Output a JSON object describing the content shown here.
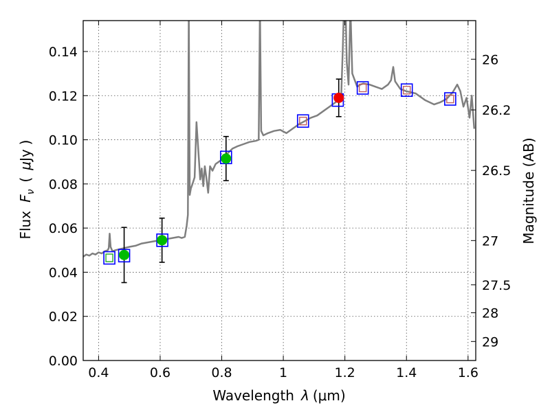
{
  "chart_data": {
    "type": "scatter",
    "xlabel_text": "Wavelength",
    "xlabel_symbol": "λ",
    "xlabel_unit": "(μm)",
    "ylabel_text": "Flux",
    "ylabel_symbol": "F",
    "ylabel_sub": "ν",
    "ylabel_paren_open": "(",
    "ylabel_unit_mu": "μ",
    "ylabel_unit_rest": "Jy",
    "ylabel_paren_close": ")",
    "y2label": "Magnitude (AB)",
    "xlim": [
      0.35,
      1.625
    ],
    "ylim": [
      0.0,
      0.154
    ],
    "grid": true,
    "x_ticks": [
      {
        "value": 0.4,
        "label": "0.4"
      },
      {
        "value": 0.6,
        "label": "0.6"
      },
      {
        "value": 0.8,
        "label": "0.8"
      },
      {
        "value": 1.0,
        "label": "1"
      },
      {
        "value": 1.2,
        "label": "1.2"
      },
      {
        "value": 1.4,
        "label": "1.4"
      },
      {
        "value": 1.6,
        "label": "1.6"
      }
    ],
    "y_ticks": [
      {
        "value": 0.0,
        "label": "0.00"
      },
      {
        "value": 0.02,
        "label": "0.02"
      },
      {
        "value": 0.04,
        "label": "0.04"
      },
      {
        "value": 0.06,
        "label": "0.06"
      },
      {
        "value": 0.08,
        "label": "0.08"
      },
      {
        "value": 0.1,
        "label": "0.10"
      },
      {
        "value": 0.12,
        "label": "0.12"
      },
      {
        "value": 0.14,
        "label": "0.14"
      }
    ],
    "mag_ticks": [
      {
        "mag": 26.0,
        "label": "26"
      },
      {
        "mag": 26.2,
        "label": "26.2"
      },
      {
        "mag": 26.5,
        "label": "26.5"
      },
      {
        "mag": 27.0,
        "label": "27"
      },
      {
        "mag": 27.5,
        "label": "27.5"
      },
      {
        "mag": 28.0,
        "label": "28"
      },
      {
        "mag": 29.0,
        "label": "29"
      }
    ],
    "colors": {
      "spectrum": "#7f7f7f",
      "model_box": "#0000ff",
      "green_obs": "#00bb00",
      "red_obs": "#ee0000",
      "inner_box_red": "#c06060",
      "inner_box_green": "#22aa22",
      "errorbar": "#000000"
    },
    "spectrum": [
      [
        0.35,
        0.047
      ],
      [
        0.36,
        0.048
      ],
      [
        0.37,
        0.0475
      ],
      [
        0.38,
        0.0485
      ],
      [
        0.39,
        0.048
      ],
      [
        0.4,
        0.049
      ],
      [
        0.41,
        0.0485
      ],
      [
        0.42,
        0.0495
      ],
      [
        0.43,
        0.05
      ],
      [
        0.433,
        0.051
      ],
      [
        0.436,
        0.0575
      ],
      [
        0.439,
        0.0515
      ],
      [
        0.445,
        0.0495
      ],
      [
        0.455,
        0.05
      ],
      [
        0.47,
        0.0505
      ],
      [
        0.485,
        0.051
      ],
      [
        0.5,
        0.0515
      ],
      [
        0.52,
        0.052
      ],
      [
        0.54,
        0.053
      ],
      [
        0.56,
        0.0535
      ],
      [
        0.58,
        0.054
      ],
      [
        0.6,
        0.0545
      ],
      [
        0.62,
        0.055
      ],
      [
        0.64,
        0.0555
      ],
      [
        0.66,
        0.056
      ],
      [
        0.67,
        0.0555
      ],
      [
        0.68,
        0.056
      ],
      [
        0.686,
        0.061
      ],
      [
        0.69,
        0.066
      ],
      [
        0.693,
        0.16
      ],
      [
        0.696,
        0.075
      ],
      [
        0.7,
        0.078
      ],
      [
        0.705,
        0.08
      ],
      [
        0.712,
        0.083
      ],
      [
        0.718,
        0.108
      ],
      [
        0.724,
        0.095
      ],
      [
        0.73,
        0.082
      ],
      [
        0.735,
        0.087
      ],
      [
        0.74,
        0.079
      ],
      [
        0.745,
        0.088
      ],
      [
        0.75,
        0.083
      ],
      [
        0.756,
        0.076
      ],
      [
        0.762,
        0.088
      ],
      [
        0.77,
        0.086
      ],
      [
        0.78,
        0.089
      ],
      [
        0.79,
        0.09
      ],
      [
        0.8,
        0.091
      ],
      [
        0.81,
        0.093
      ],
      [
        0.82,
        0.094
      ],
      [
        0.835,
        0.096
      ],
      [
        0.85,
        0.097
      ],
      [
        0.87,
        0.098
      ],
      [
        0.89,
        0.099
      ],
      [
        0.91,
        0.0995
      ],
      [
        0.92,
        0.1
      ],
      [
        0.924,
        0.16
      ],
      [
        0.928,
        0.104
      ],
      [
        0.935,
        0.102
      ],
      [
        0.95,
        0.103
      ],
      [
        0.97,
        0.104
      ],
      [
        0.99,
        0.1045
      ],
      [
        1.01,
        0.103
      ],
      [
        1.03,
        0.105
      ],
      [
        1.05,
        0.107
      ],
      [
        1.07,
        0.1085
      ],
      [
        1.09,
        0.11
      ],
      [
        1.11,
        0.111
      ],
      [
        1.13,
        0.113
      ],
      [
        1.15,
        0.115
      ],
      [
        1.17,
        0.117
      ],
      [
        1.18,
        0.1185
      ],
      [
        1.188,
        0.12
      ],
      [
        1.193,
        0.14
      ],
      [
        1.197,
        0.16
      ],
      [
        1.202,
        0.16
      ],
      [
        1.206,
        0.135
      ],
      [
        1.212,
        0.125
      ],
      [
        1.218,
        0.16
      ],
      [
        1.224,
        0.13
      ],
      [
        1.232,
        0.127
      ],
      [
        1.24,
        0.124
      ],
      [
        1.25,
        0.125
      ],
      [
        1.26,
        0.1255
      ],
      [
        1.28,
        0.125
      ],
      [
        1.3,
        0.124
      ],
      [
        1.32,
        0.123
      ],
      [
        1.34,
        0.125
      ],
      [
        1.35,
        0.127
      ],
      [
        1.357,
        0.133
      ],
      [
        1.363,
        0.1265
      ],
      [
        1.38,
        0.123
      ],
      [
        1.4,
        0.122
      ],
      [
        1.43,
        0.121
      ],
      [
        1.46,
        0.118
      ],
      [
        1.49,
        0.116
      ],
      [
        1.51,
        0.117
      ],
      [
        1.53,
        0.1185
      ],
      [
        1.55,
        0.1215
      ],
      [
        1.565,
        0.125
      ],
      [
        1.575,
        0.122
      ],
      [
        1.585,
        0.115
      ],
      [
        1.595,
        0.119
      ],
      [
        1.605,
        0.11
      ],
      [
        1.612,
        0.12
      ],
      [
        1.62,
        0.105
      ]
    ],
    "model_points": [
      {
        "x": 0.435,
        "y": 0.0465,
        "inner": "green"
      },
      {
        "x": 0.483,
        "y": 0.0475,
        "inner": "none"
      },
      {
        "x": 0.607,
        "y": 0.0545,
        "inner": "none"
      },
      {
        "x": 0.814,
        "y": 0.092,
        "inner": "none"
      },
      {
        "x": 1.064,
        "y": 0.1085,
        "inner": "red"
      },
      {
        "x": 1.177,
        "y": 0.118,
        "inner": "none"
      },
      {
        "x": 1.258,
        "y": 0.1235,
        "inner": "red"
      },
      {
        "x": 1.401,
        "y": 0.1225,
        "inner": "red"
      },
      {
        "x": 1.542,
        "y": 0.1185,
        "inner": "red"
      }
    ],
    "observed_points": [
      {
        "x": 0.483,
        "y": 0.0478,
        "err": 0.0125,
        "color": "green"
      },
      {
        "x": 0.606,
        "y": 0.0545,
        "err": 0.01,
        "color": "green"
      },
      {
        "x": 0.814,
        "y": 0.0915,
        "err": 0.01,
        "color": "green"
      },
      {
        "x": 1.18,
        "y": 0.119,
        "err": 0.0085,
        "color": "red"
      }
    ]
  }
}
